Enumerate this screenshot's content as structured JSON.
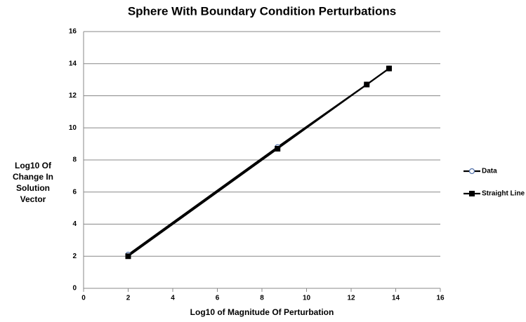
{
  "chart_data": {
    "type": "line",
    "title": "Sphere With Boundary Condition Perturbations",
    "x_label": "Log10 of Magnitude Of Perturbation",
    "y_label": [
      "Log10 Of",
      "Change In",
      "Solution",
      "Vector"
    ],
    "series": [
      {
        "name": "Data",
        "color": "#000000",
        "marker": "circle",
        "marker_color": "#4f6fa8",
        "x": [
          2,
          8.7,
          12.7,
          13.7
        ],
        "values": [
          2.1,
          8.8,
          12.7,
          13.7
        ]
      },
      {
        "name": "Straight Line",
        "color": "#000000",
        "marker": "square",
        "marker_color": "#000000",
        "x": [
          2,
          8.7,
          12.7,
          13.7
        ],
        "values": [
          2,
          8.7,
          12.7,
          13.7
        ]
      }
    ],
    "xlim": [
      0,
      16
    ],
    "xticks": [
      0,
      2,
      4,
      6,
      8,
      10,
      12,
      14,
      16
    ],
    "ylim": [
      0,
      16
    ],
    "yticks": [
      0,
      2,
      4,
      6,
      8,
      10,
      12,
      14,
      16
    ],
    "grid": true,
    "legend": "right"
  }
}
